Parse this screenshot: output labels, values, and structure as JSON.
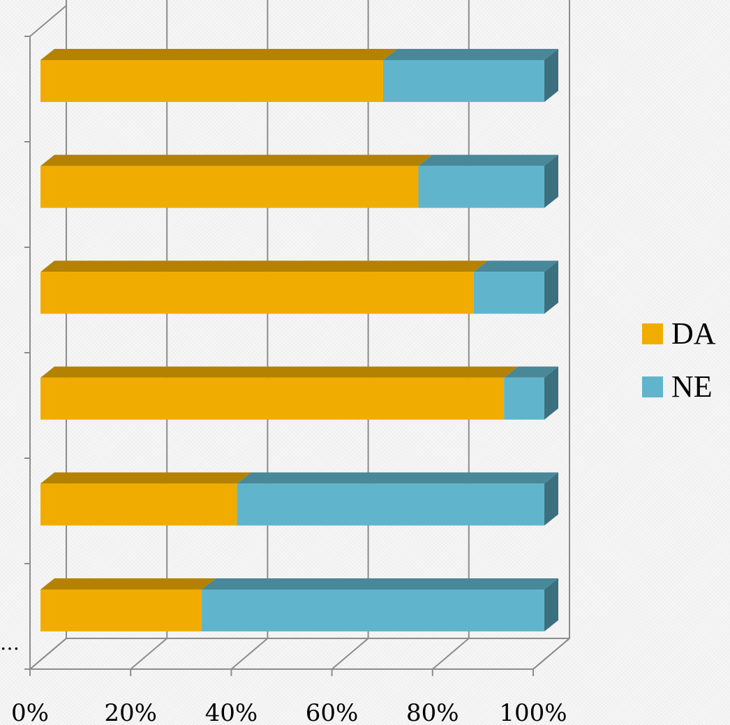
{
  "chart_data": {
    "type": "bar",
    "orientation": "horizontal",
    "stacked": "percent",
    "three_d": true,
    "categories": [
      "",
      "",
      "",
      "",
      "",
      "…"
    ],
    "series": [
      {
        "name": "DA",
        "color": "#f0ad00",
        "values": [
          68,
          75,
          86,
          92,
          39,
          32
        ]
      },
      {
        "name": "NE",
        "color": "#60b5cc",
        "values": [
          32,
          25,
          14,
          8,
          61,
          68
        ]
      }
    ],
    "xlim": [
      0,
      100
    ],
    "xticks": [
      "0%",
      "20%",
      "40%",
      "60%",
      "80%",
      "100%"
    ],
    "grid": true,
    "legend_position": "right"
  }
}
